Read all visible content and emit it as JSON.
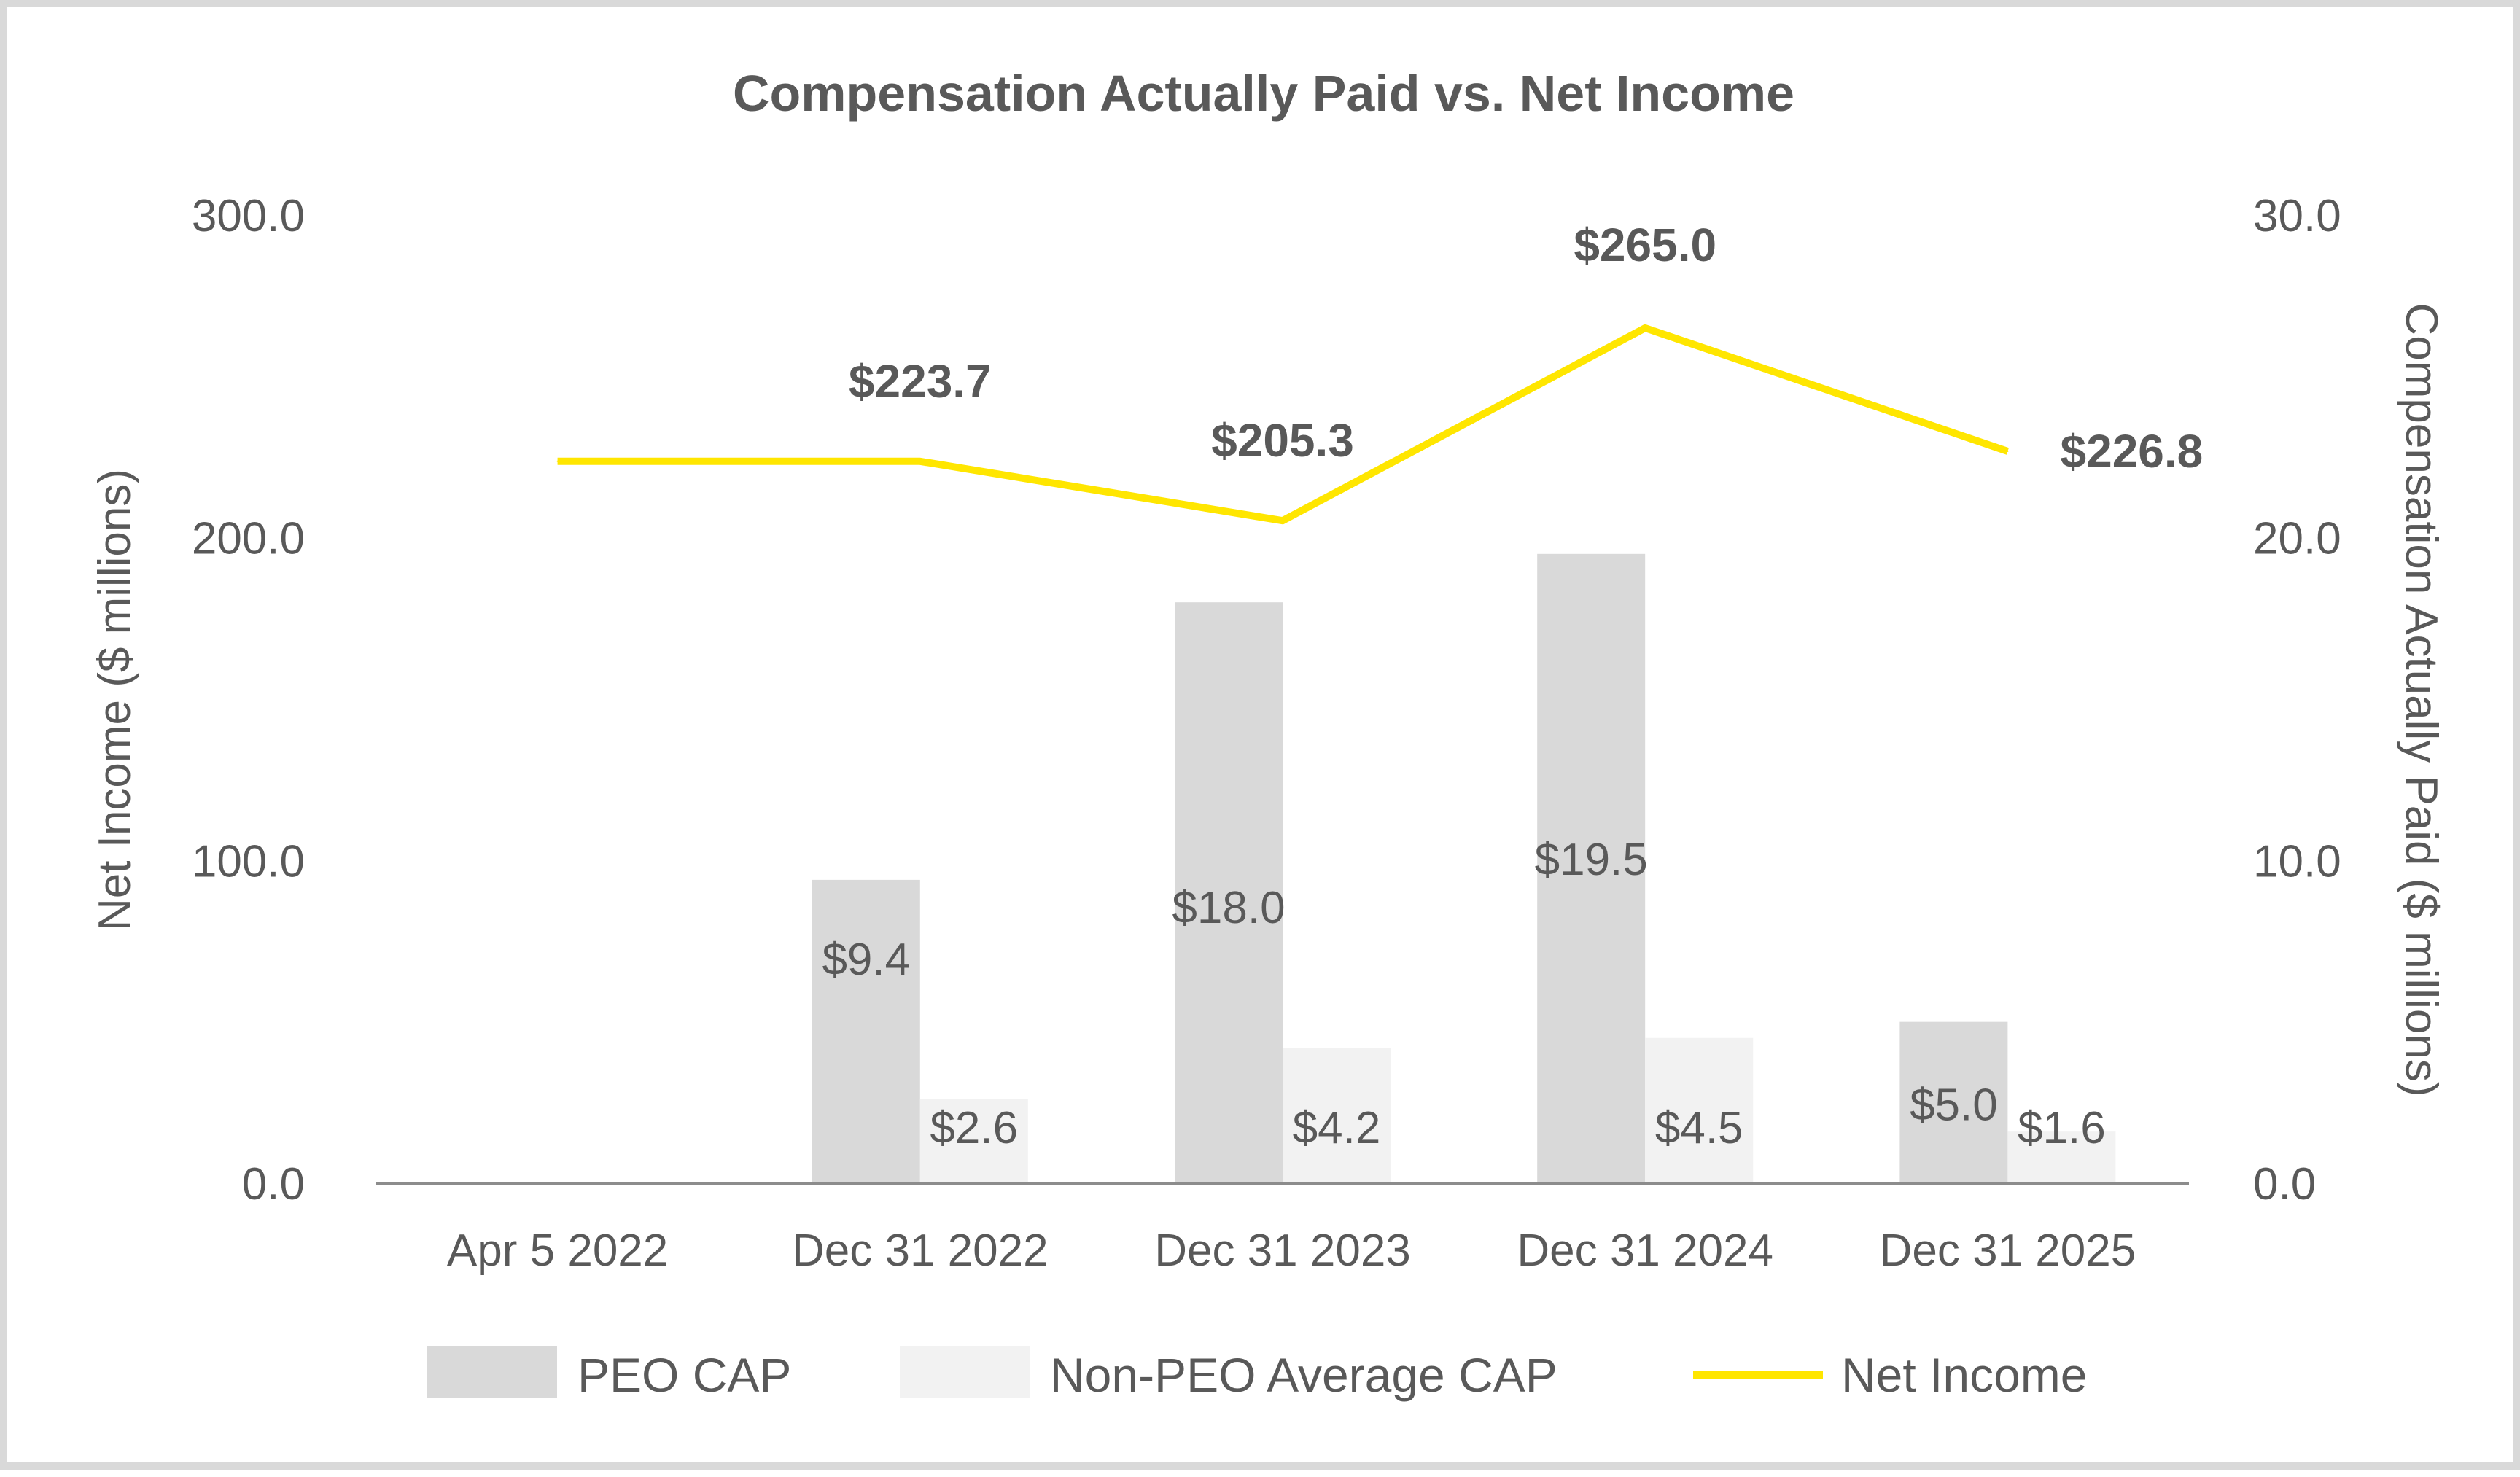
{
  "chart_data": {
    "type": "bar+line",
    "title": "Compensation Actually Paid vs. Net Income",
    "categories": [
      "Apr 5 2022",
      "Dec 31 2022",
      "Dec 31 2023",
      "Dec 31 2024",
      "Dec 31 2025"
    ],
    "left_axis": {
      "label": "Net Income ($ millions)",
      "range": [
        0,
        300
      ],
      "ticks": [
        "0.0",
        "100.0",
        "200.0",
        "300.0"
      ],
      "tick_values": [
        0,
        100,
        200,
        300
      ]
    },
    "right_axis": {
      "label": "Compensation Actually Paid ($ millions)",
      "range": [
        0,
        30
      ],
      "ticks": [
        "0.0",
        "10.0",
        "20.0",
        "30.0"
      ],
      "tick_values": [
        0,
        10,
        20,
        30
      ]
    },
    "series": [
      {
        "name": "PEO CAP",
        "kind": "bar",
        "axis": "right",
        "color": "#d9d9d9",
        "values": [
          null,
          9.4,
          18.0,
          19.5,
          5.0
        ],
        "labels": [
          "",
          "$9.4",
          "$18.0",
          "$19.5",
          "$5.0"
        ]
      },
      {
        "name": "Non-PEO Average CAP",
        "kind": "bar",
        "axis": "right",
        "color": "#f2f2f2",
        "values": [
          null,
          2.6,
          4.2,
          4.5,
          1.6
        ],
        "labels": [
          "",
          "$2.6",
          "$4.2",
          "$4.5",
          "$1.6"
        ]
      },
      {
        "name": "Net Income",
        "kind": "line",
        "axis": "left",
        "color": "#ffe600",
        "values": [
          223.7,
          223.7,
          205.3,
          265.0,
          226.8
        ],
        "labels": [
          "",
          "$223.7",
          "$205.3",
          "$265.0",
          "$226.8"
        ]
      }
    ],
    "legend": [
      "PEO CAP",
      "Non-PEO Average CAP",
      "Net Income"
    ],
    "legend_position": "bottom",
    "grid": false
  }
}
